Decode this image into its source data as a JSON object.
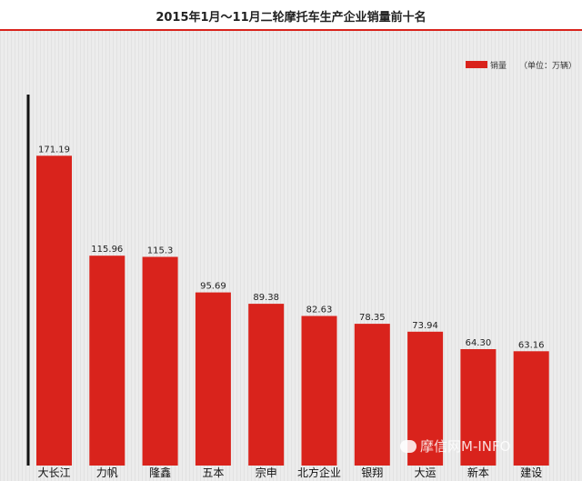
{
  "chart_data": {
    "type": "bar",
    "title": "2015年1月～11月二轮摩托车生产企业销量前十名",
    "categories": [
      "大长江",
      "力帆",
      "隆鑫",
      "五本",
      "宗申",
      "北方企业",
      "银翔",
      "大运",
      "新本",
      "建设"
    ],
    "value_labels": [
      "171.19",
      "115.96",
      "115.3",
      "95.69",
      "89.38",
      "82.63",
      "78.35",
      "73.94",
      "64.30",
      "63.16"
    ],
    "series": [
      {
        "name": "销量",
        "values": [
          171.19,
          115.96,
          115.3,
          95.69,
          89.38,
          82.63,
          78.35,
          73.94,
          64.3,
          63.16
        ]
      }
    ],
    "unit_note": "（单位：万辆）",
    "ylim": [
      0,
      205
    ],
    "grid": false,
    "legend_position": "top-right",
    "bar_color": "#d9231c",
    "xlabel": "",
    "ylabel": ""
  },
  "watermark": "摩信网M-INFO"
}
